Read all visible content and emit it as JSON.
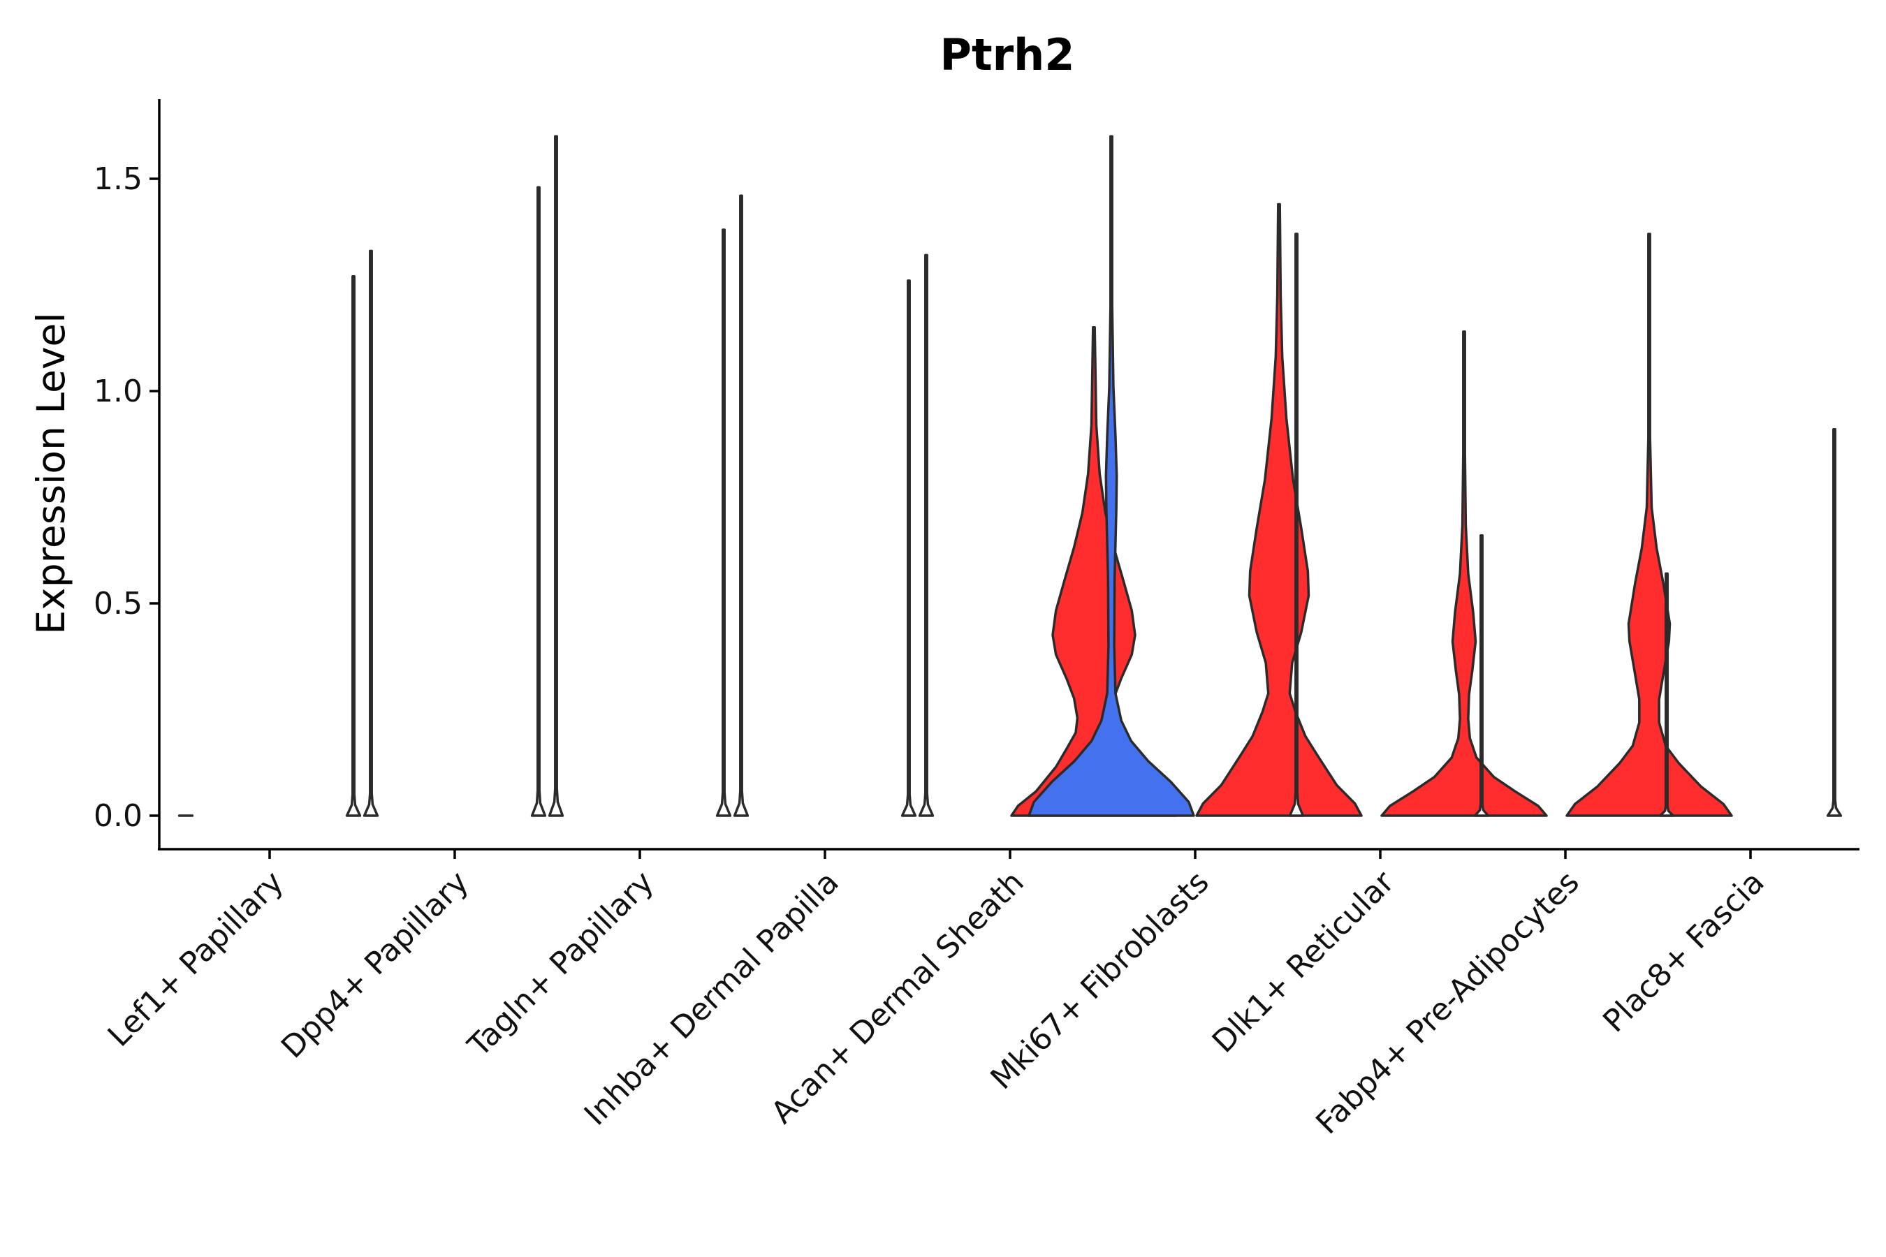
{
  "chart_data": {
    "type": "violin",
    "title": "Ptrh2",
    "xlabel": "",
    "ylabel": "Expression Level",
    "ylim": [
      -0.08,
      1.68
    ],
    "yticks": [
      "0.0",
      "0.5",
      "1.0",
      "1.5"
    ],
    "ytick_values": [
      0.0,
      0.5,
      1.0,
      1.5
    ],
    "categories": [
      "Lef1+ Papillary",
      "Dpp4+ Papillary",
      "Tagln+ Papillary",
      "Inhba+ Dermal Papilla",
      "Acan+ Dermal Sheath",
      "Mki67+ Fibroblasts",
      "Dlk1+ Reticular",
      "Fabp4+ Pre-Adipocytes",
      "Plac8+ Fascia"
    ],
    "colors": {
      "low": "#4471ee",
      "high": "#ff2d2d",
      "none": "#ffffff",
      "outline": "#2b2b2b"
    },
    "series": [
      {
        "name": "Lef1+ Papillary (left)",
        "category": 0,
        "side": "left",
        "max": 0.0,
        "fill": "none",
        "density": [
          [
            0,
            0.08
          ]
        ]
      },
      {
        "name": "Lef1+ Papillary (right)",
        "category": 0,
        "side": "right",
        "max": 1.27,
        "fill": "none",
        "density": [
          [
            0,
            0.08
          ],
          [
            0.02,
            0.02
          ],
          [
            0.04,
            0.0
          ]
        ]
      },
      {
        "name": "Dpp4+ Papillary (left)",
        "category": 1,
        "side": "left",
        "max": 1.33,
        "fill": "none",
        "density": [
          [
            0,
            0.08
          ],
          [
            0.02,
            0.02
          ],
          [
            0.04,
            0.0
          ]
        ]
      },
      {
        "name": "Dpp4+ Papillary (right)",
        "category": 1,
        "side": "right",
        "max": 1.48,
        "fill": "none",
        "density": [
          [
            0,
            0.08
          ],
          [
            0.02,
            0.02
          ],
          [
            0.04,
            0.0
          ]
        ]
      },
      {
        "name": "Tagln+ Papillary (left)",
        "category": 2,
        "side": "left",
        "max": 1.6,
        "fill": "none",
        "density": [
          [
            0,
            0.08
          ],
          [
            0.02,
            0.02
          ],
          [
            0.04,
            0.0
          ]
        ]
      },
      {
        "name": "Tagln+ Papillary (right)",
        "category": 2,
        "side": "right",
        "max": 1.38,
        "fill": "none",
        "density": [
          [
            0,
            0.08
          ],
          [
            0.02,
            0.02
          ],
          [
            0.04,
            0.0
          ]
        ]
      },
      {
        "name": "Inhba+ Dermal Papilla (left)",
        "category": 3,
        "side": "left",
        "max": 1.46,
        "fill": "none",
        "density": [
          [
            0,
            0.08
          ],
          [
            0.02,
            0.02
          ],
          [
            0.04,
            0.0
          ]
        ]
      },
      {
        "name": "Inhba+ Dermal Papilla (right)",
        "category": 3,
        "side": "right",
        "max": 1.26,
        "fill": "none",
        "density": [
          [
            0,
            0.08
          ],
          [
            0.02,
            0.02
          ],
          [
            0.04,
            0.0
          ]
        ]
      },
      {
        "name": "Acan+ Dermal Sheath (left)",
        "category": 4,
        "side": "left",
        "max": 1.32,
        "fill": "none",
        "density": [
          [
            0,
            0.08
          ],
          [
            0.02,
            0.02
          ],
          [
            0.04,
            0.0
          ]
        ]
      },
      {
        "name": "Acan+ Dermal Sheath (right)",
        "category": 4,
        "side": "right",
        "max": 1.15,
        "fill": "high",
        "density": [
          [
            0,
            1.0
          ],
          [
            0.02,
            0.92
          ],
          [
            0.05,
            0.7
          ],
          [
            0.1,
            0.46
          ],
          [
            0.14,
            0.32
          ],
          [
            0.17,
            0.22
          ],
          [
            0.2,
            0.2
          ],
          [
            0.24,
            0.24
          ],
          [
            0.28,
            0.33
          ],
          [
            0.33,
            0.46
          ],
          [
            0.37,
            0.5
          ],
          [
            0.42,
            0.46
          ],
          [
            0.48,
            0.36
          ],
          [
            0.55,
            0.24
          ],
          [
            0.62,
            0.14
          ],
          [
            0.7,
            0.07
          ],
          [
            0.8,
            0.03
          ],
          [
            1.0,
            0.0
          ]
        ]
      },
      {
        "name": "Mki67+ Fibroblasts (left)",
        "category": 5,
        "side": "left",
        "max": 1.6,
        "fill": "low",
        "density": [
          [
            0,
            1.0
          ],
          [
            0.02,
            0.94
          ],
          [
            0.05,
            0.72
          ],
          [
            0.08,
            0.45
          ],
          [
            0.11,
            0.24
          ],
          [
            0.14,
            0.12
          ],
          [
            0.18,
            0.05
          ],
          [
            0.25,
            0.035
          ],
          [
            0.35,
            0.04
          ],
          [
            0.45,
            0.06
          ],
          [
            0.5,
            0.065
          ],
          [
            0.56,
            0.05
          ],
          [
            0.63,
            0.025
          ],
          [
            0.75,
            0.01
          ],
          [
            1.0,
            0.0
          ]
        ]
      },
      {
        "name": "Mki67+ Fibroblasts (right)",
        "category": 5,
        "side": "right",
        "max": 1.44,
        "fill": "high",
        "density": [
          [
            0,
            1.0
          ],
          [
            0.02,
            0.92
          ],
          [
            0.05,
            0.7
          ],
          [
            0.1,
            0.46
          ],
          [
            0.13,
            0.32
          ],
          [
            0.17,
            0.2
          ],
          [
            0.2,
            0.13
          ],
          [
            0.25,
            0.16
          ],
          [
            0.3,
            0.27
          ],
          [
            0.36,
            0.36
          ],
          [
            0.4,
            0.35
          ],
          [
            0.47,
            0.27
          ],
          [
            0.55,
            0.17
          ],
          [
            0.65,
            0.09
          ],
          [
            0.75,
            0.04
          ],
          [
            0.85,
            0.02
          ],
          [
            1.0,
            0.0
          ]
        ]
      },
      {
        "name": "Dlk1+ Reticular (left)",
        "category": 6,
        "side": "left",
        "max": 1.37,
        "fill": "none",
        "density": [
          [
            0,
            0.08
          ],
          [
            0.02,
            0.02
          ],
          [
            0.04,
            0.0
          ]
        ]
      },
      {
        "name": "Dlk1+ Reticular (right)",
        "category": 6,
        "side": "right",
        "max": 1.14,
        "fill": "high",
        "density": [
          [
            0,
            1.0
          ],
          [
            0.02,
            0.9
          ],
          [
            0.05,
            0.62
          ],
          [
            0.08,
            0.36
          ],
          [
            0.12,
            0.15
          ],
          [
            0.16,
            0.07
          ],
          [
            0.2,
            0.05
          ],
          [
            0.25,
            0.06
          ],
          [
            0.3,
            0.1
          ],
          [
            0.36,
            0.14
          ],
          [
            0.42,
            0.11
          ],
          [
            0.5,
            0.05
          ],
          [
            0.6,
            0.02
          ],
          [
            0.75,
            0.01
          ],
          [
            1.0,
            0.0
          ]
        ]
      },
      {
        "name": "Fabp4+ Pre-Adipocytes (left)",
        "category": 7,
        "side": "left",
        "max": 0.66,
        "fill": "none",
        "density": [
          [
            0,
            0.08
          ],
          [
            0.02,
            0.02
          ],
          [
            0.04,
            0.0
          ]
        ]
      },
      {
        "name": "Fabp4+ Pre-Adipocytes (right)",
        "category": 7,
        "side": "right",
        "max": 1.37,
        "fill": "high",
        "density": [
          [
            0,
            1.0
          ],
          [
            0.02,
            0.9
          ],
          [
            0.05,
            0.63
          ],
          [
            0.09,
            0.36
          ],
          [
            0.12,
            0.2
          ],
          [
            0.16,
            0.12
          ],
          [
            0.2,
            0.12
          ],
          [
            0.25,
            0.18
          ],
          [
            0.3,
            0.24
          ],
          [
            0.33,
            0.25
          ],
          [
            0.4,
            0.17
          ],
          [
            0.46,
            0.09
          ],
          [
            0.53,
            0.03
          ],
          [
            0.65,
            0.01
          ],
          [
            1.0,
            0.0
          ]
        ]
      },
      {
        "name": "Plac8+ Fascia (left)",
        "category": 8,
        "side": "left",
        "max": 0.57,
        "fill": "none",
        "density": [
          [
            0,
            0.08
          ],
          [
            0.02,
            0.02
          ],
          [
            0.04,
            0.0
          ]
        ]
      },
      {
        "name": "Plac8+ Fascia (right)",
        "category": 8,
        "side": "right",
        "max": 0.91,
        "fill": "none",
        "density": [
          [
            0,
            0.08
          ],
          [
            0.02,
            0.02
          ],
          [
            0.04,
            0.0
          ]
        ]
      }
    ]
  }
}
